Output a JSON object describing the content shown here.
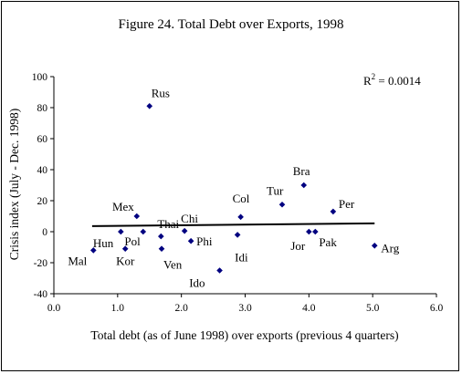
{
  "chart_data": {
    "type": "scatter",
    "title": "Figure 24. Total Debt over Exports, 1998",
    "xlabel": "Total debt (as of June 1998) over exports (previous 4 quarters)",
    "ylabel": "Crisis index (July - Dec. 1998)",
    "xlim": [
      0.0,
      6.0
    ],
    "ylim": [
      -40,
      100
    ],
    "x_ticks": [
      "0.0",
      "1.0",
      "2.0",
      "3.0",
      "4.0",
      "5.0",
      "6.0"
    ],
    "y_ticks": [
      "-40",
      "-20",
      "0",
      "20",
      "40",
      "60",
      "80",
      "100"
    ],
    "marker_color": "#000080",
    "trendline": {
      "x": [
        0.6,
        5.03
      ],
      "y": [
        3.6,
        5.4
      ]
    },
    "r_squared": {
      "label": "R",
      "sup": "2",
      "value": " = 0.0014"
    },
    "points": [
      {
        "label": "Mal",
        "x": 0.62,
        "y": -12
      },
      {
        "label": "Hun",
        "x": 1.05,
        "y": 0
      },
      {
        "label": "Kor",
        "x": 1.12,
        "y": -11
      },
      {
        "label": "Mex",
        "x": 1.3,
        "y": 10
      },
      {
        "label": "Pol",
        "x": 1.4,
        "y": 0
      },
      {
        "label": "Rus",
        "x": 1.5,
        "y": 81
      },
      {
        "label": "Thai",
        "x": 1.68,
        "y": -3
      },
      {
        "label": "Ven",
        "x": 1.69,
        "y": -11
      },
      {
        "label": "Chi",
        "x": 2.05,
        "y": 0.5
      },
      {
        "label": "Phi",
        "x": 2.15,
        "y": -6
      },
      {
        "label": "Ido",
        "x": 2.6,
        "y": -25
      },
      {
        "label": "Idi",
        "x": 2.88,
        "y": -2
      },
      {
        "label": "Col",
        "x": 2.93,
        "y": 9.5
      },
      {
        "label": "Tur",
        "x": 3.58,
        "y": 17.5
      },
      {
        "label": "Bra",
        "x": 3.92,
        "y": 30
      },
      {
        "label": "Jor",
        "x": 4.0,
        "y": 0
      },
      {
        "label": "Pak",
        "x": 4.1,
        "y": 0
      },
      {
        "label": "Per",
        "x": 4.38,
        "y": 13
      },
      {
        "label": "Arg",
        "x": 5.03,
        "y": -9
      }
    ]
  }
}
